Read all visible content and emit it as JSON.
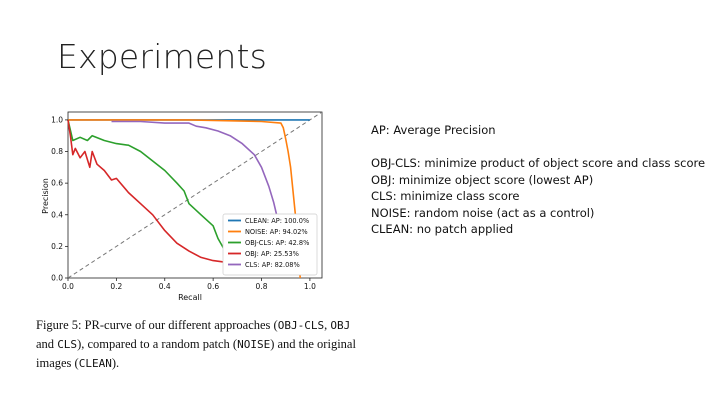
{
  "slide": {
    "title": "Experiments"
  },
  "caption": {
    "part1": "Figure 5: PR-curve of our different approaches (",
    "m1": "OBJ-CLS",
    "part2": ", ",
    "m2": "OBJ",
    "part3": " and ",
    "m3": "CLS",
    "part4": "), compared to a random patch (",
    "m4": "NOISE",
    "part5": ") and the original images (",
    "m5": "CLEAN",
    "part6": ")."
  },
  "notes": {
    "ap": "AP: Average Precision",
    "objcls": "OBJ-CLS: minimize product of object score and class score",
    "obj": "OBJ: minimize object score (lowest AP)",
    "cls": "CLS: minimize class score",
    "noise": "NOISE: random noise (act as a control)",
    "clean": "CLEAN: no patch applied"
  },
  "chart_data": {
    "type": "line",
    "xlabel": "Recall",
    "ylabel": "Precision",
    "xlim": [
      0,
      1.05
    ],
    "ylim": [
      0,
      1.05
    ],
    "xticks": [
      "0.0",
      "0.2",
      "0.4",
      "0.6",
      "0.8",
      "1.0"
    ],
    "yticks": [
      "0.0",
      "0.2",
      "0.4",
      "0.6",
      "0.8",
      "1.0"
    ],
    "grid": false,
    "legend_position": "lower-right",
    "diagonal_reference": true,
    "series": [
      {
        "name": "CLEAN: AP: 100.0%",
        "color": "#1f77b4",
        "x": [
          0,
          1.0
        ],
        "y": [
          1.0,
          1.0
        ]
      },
      {
        "name": "NOISE: AP: 94.02%",
        "color": "#ff7f0e",
        "x": [
          0,
          0.5,
          0.8,
          0.88,
          0.89,
          0.9,
          0.91,
          0.92,
          0.93,
          0.94,
          0.95,
          0.96
        ],
        "y": [
          1.0,
          1.0,
          0.99,
          0.98,
          0.95,
          0.88,
          0.8,
          0.7,
          0.55,
          0.4,
          0.2,
          0.0
        ]
      },
      {
        "name": "OBJ-CLS: AP: 42.8%",
        "color": "#2ca02c",
        "x": [
          0,
          0.02,
          0.05,
          0.08,
          0.1,
          0.15,
          0.2,
          0.25,
          0.3,
          0.35,
          0.4,
          0.45,
          0.48,
          0.5,
          0.55,
          0.6,
          0.62,
          0.65,
          0.68,
          0.7
        ],
        "y": [
          1.0,
          0.87,
          0.89,
          0.87,
          0.9,
          0.87,
          0.85,
          0.84,
          0.8,
          0.74,
          0.68,
          0.6,
          0.55,
          0.47,
          0.4,
          0.33,
          0.25,
          0.17,
          0.12,
          0.1
        ]
      },
      {
        "name": "OBJ: AP: 25.53%",
        "color": "#d62728",
        "x": [
          0,
          0.01,
          0.02,
          0.03,
          0.05,
          0.07,
          0.09,
          0.1,
          0.12,
          0.15,
          0.18,
          0.2,
          0.25,
          0.3,
          0.35,
          0.4,
          0.45,
          0.5,
          0.55,
          0.6,
          0.65,
          0.7,
          0.75
        ],
        "y": [
          1.0,
          0.9,
          0.78,
          0.82,
          0.76,
          0.8,
          0.7,
          0.8,
          0.72,
          0.68,
          0.62,
          0.63,
          0.54,
          0.47,
          0.4,
          0.3,
          0.22,
          0.17,
          0.13,
          0.11,
          0.1,
          0.09,
          0.08
        ]
      },
      {
        "name": "CLS: AP: 82.08%",
        "color": "#9467bd",
        "x": [
          0.18,
          0.3,
          0.4,
          0.5,
          0.53,
          0.57,
          0.62,
          0.67,
          0.72,
          0.77,
          0.8,
          0.83,
          0.85,
          0.87,
          0.88,
          0.89
        ],
        "y": [
          0.99,
          0.99,
          0.98,
          0.98,
          0.96,
          0.95,
          0.93,
          0.9,
          0.85,
          0.78,
          0.7,
          0.58,
          0.48,
          0.35,
          0.2,
          0.1
        ]
      }
    ]
  }
}
